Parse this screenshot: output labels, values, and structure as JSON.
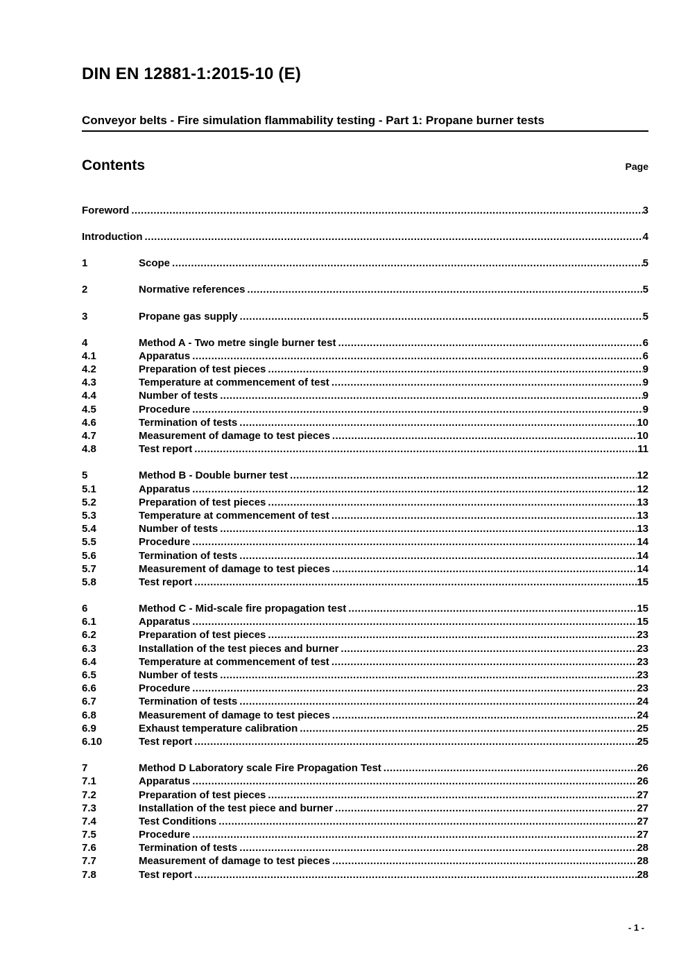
{
  "document": {
    "title": "DIN EN 12881-1:2015-10 (E)",
    "subtitle": "Conveyor belts - Fire simulation flammability testing - Part 1: Propane burner tests",
    "contents_heading": "Contents",
    "page_column_label": "Page",
    "footer_page_number": "- 1 -"
  },
  "toc": {
    "groups": [
      {
        "entries": [
          {
            "num": "",
            "label": "Foreword",
            "page": "3"
          }
        ]
      },
      {
        "entries": [
          {
            "num": "",
            "label": "Introduction",
            "page": "4"
          }
        ]
      },
      {
        "entries": [
          {
            "num": "1",
            "label": "Scope",
            "page": "5"
          }
        ]
      },
      {
        "entries": [
          {
            "num": "2",
            "label": "Normative references",
            "page": "5"
          }
        ]
      },
      {
        "entries": [
          {
            "num": "3",
            "label": "Propane gas supply",
            "page": "5"
          }
        ]
      },
      {
        "entries": [
          {
            "num": "4",
            "label": "Method A - Two metre single burner test",
            "page": "6"
          },
          {
            "num": "4.1",
            "label": "Apparatus",
            "page": "6"
          },
          {
            "num": "4.2",
            "label": "Preparation of test pieces",
            "page": "9"
          },
          {
            "num": "4.3",
            "label": "Temperature at commencement of test",
            "page": "9"
          },
          {
            "num": "4.4",
            "label": "Number of tests",
            "page": "9"
          },
          {
            "num": "4.5",
            "label": "Procedure",
            "page": "9"
          },
          {
            "num": "4.6",
            "label": "Termination of tests",
            "page": "10"
          },
          {
            "num": "4.7",
            "label": "Measurement of damage to test pieces",
            "page": "10"
          },
          {
            "num": "4.8",
            "label": "Test report",
            "page": "11"
          }
        ]
      },
      {
        "entries": [
          {
            "num": "5",
            "label": "Method B - Double burner test",
            "page": "12"
          },
          {
            "num": "5.1",
            "label": "Apparatus",
            "page": "12"
          },
          {
            "num": "5.2",
            "label": "Preparation of test pieces",
            "page": "13"
          },
          {
            "num": "5.3",
            "label": "Temperature at commencement of test",
            "page": "13"
          },
          {
            "num": "5.4",
            "label": "Number of tests",
            "page": "13"
          },
          {
            "num": "5.5",
            "label": "Procedure",
            "page": "14"
          },
          {
            "num": "5.6",
            "label": "Termination of tests",
            "page": "14"
          },
          {
            "num": "5.7",
            "label": "Measurement of damage to test pieces",
            "page": "14"
          },
          {
            "num": "5.8",
            "label": "Test report",
            "page": "15"
          }
        ]
      },
      {
        "entries": [
          {
            "num": "6",
            "label": "Method C - Mid-scale fire propagation test",
            "page": "15"
          },
          {
            "num": "6.1",
            "label": "Apparatus",
            "page": "15"
          },
          {
            "num": "6.2",
            "label": "Preparation of test pieces",
            "page": "23"
          },
          {
            "num": "6.3",
            "label": "Installation of the test pieces and burner",
            "page": "23"
          },
          {
            "num": "6.4",
            "label": "Temperature at commencement of test",
            "page": "23"
          },
          {
            "num": "6.5",
            "label": "Number of tests",
            "page": "23"
          },
          {
            "num": "6.6",
            "label": "Procedure",
            "page": "23"
          },
          {
            "num": "6.7",
            "label": "Termination of tests",
            "page": "24"
          },
          {
            "num": "6.8",
            "label": "Measurement of damage to test pieces",
            "page": "24"
          },
          {
            "num": "6.9",
            "label": "Exhaust temperature calibration",
            "page": "25"
          },
          {
            "num": "6.10",
            "label": "Test report",
            "page": "25"
          }
        ]
      },
      {
        "entries": [
          {
            "num": "7",
            "label": "Method D Laboratory scale Fire Propagation Test",
            "page": "26"
          },
          {
            "num": "7.1",
            "label": "Apparatus",
            "page": "26"
          },
          {
            "num": "7.2",
            "label": "Preparation of test pieces",
            "page": "27"
          },
          {
            "num": "7.3",
            "label": "Installation of the test piece and burner",
            "page": "27"
          },
          {
            "num": "7.4",
            "label": "Test Conditions",
            "page": "27"
          },
          {
            "num": "7.5",
            "label": "Procedure",
            "page": "27"
          },
          {
            "num": "7.6",
            "label": "Termination of tests",
            "page": "28"
          },
          {
            "num": "7.7",
            "label": "Measurement of damage to test pieces",
            "page": "28"
          },
          {
            "num": "7.8",
            "label": "Test report",
            "page": "28"
          }
        ]
      }
    ]
  }
}
